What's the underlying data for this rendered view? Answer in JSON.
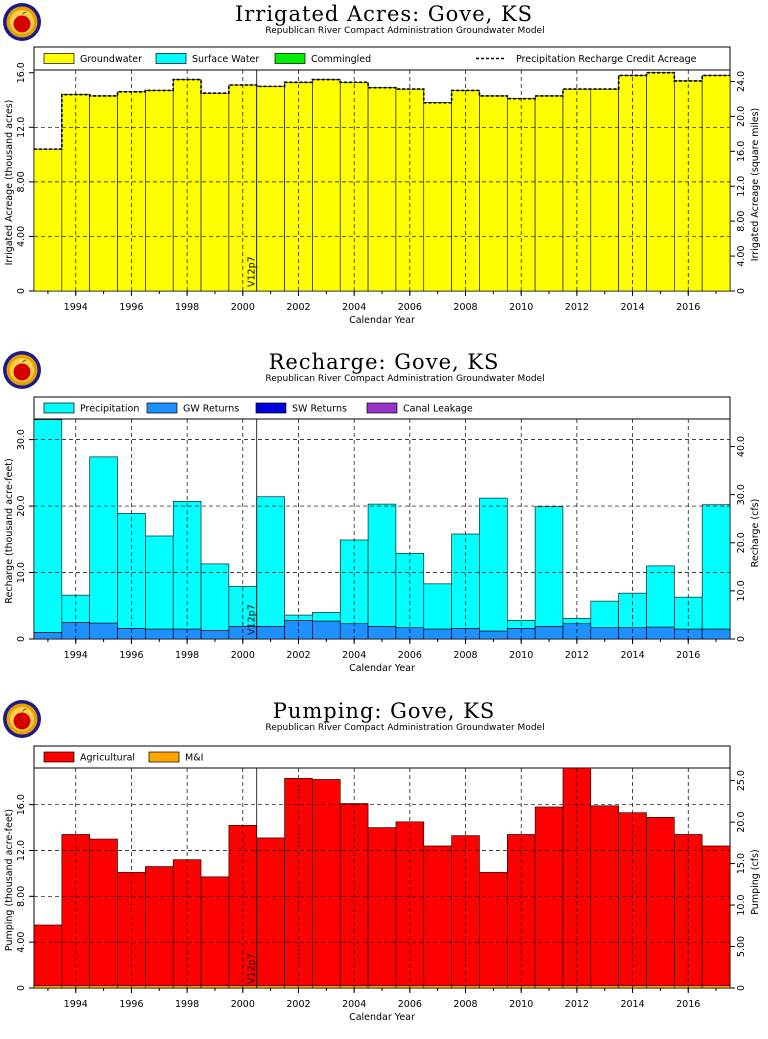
{
  "chart_data": [
    {
      "type": "bar",
      "title": "Irrigated  Acres:  Gove,  KS",
      "subtitle": "Republican  River  Compact  Administration  Groundwater  Model",
      "xlabel": "Calendar  Year",
      "ylabel": "Irrigated Acreage  (thousand  acres)",
      "ylabel_right": "Irrigated Acreage  (square  miles)",
      "annotation": "V12p7",
      "annotation_year": 2000.5,
      "xlim": [
        1992.5,
        2017.5
      ],
      "ylim": [
        0,
        16.2
      ],
      "yticks": [
        0,
        4.0,
        8.0,
        12.0,
        16.0
      ],
      "ytick_labels": [
        "0",
        "4.00",
        "8.00",
        "12.0",
        "16.0"
      ],
      "right_scale": 1.5625,
      "right_ticks": [
        0,
        4.0,
        8.0,
        12.0,
        16.0,
        20.0,
        24.0
      ],
      "right_tick_labels": [
        "0",
        "4.00",
        "8.00",
        "12.0",
        "16.0",
        "20.0",
        "24.0"
      ],
      "xticks": [
        1994,
        1996,
        1998,
        2000,
        2002,
        2004,
        2006,
        2008,
        2010,
        2012,
        2014,
        2016
      ],
      "categories": [
        1993,
        1994,
        1995,
        1996,
        1997,
        1998,
        1999,
        2000,
        2001,
        2002,
        2003,
        2004,
        2005,
        2006,
        2007,
        2008,
        2009,
        2010,
        2011,
        2012,
        2013,
        2014,
        2015,
        2016,
        2017
      ],
      "series": [
        {
          "name": "Groundwater",
          "color": "#ffff00",
          "values": [
            10.4,
            14.4,
            14.3,
            14.6,
            14.7,
            15.5,
            14.5,
            15.1,
            15.0,
            15.3,
            15.5,
            15.3,
            14.9,
            14.8,
            13.8,
            14.7,
            14.3,
            14.1,
            14.3,
            14.8,
            14.8,
            15.8,
            16.0,
            15.4,
            15.8
          ]
        },
        {
          "name": "Surface  Water",
          "color": "#00ffff",
          "values": [
            0,
            0,
            0,
            0,
            0,
            0,
            0,
            0,
            0,
            0,
            0,
            0,
            0,
            0,
            0,
            0,
            0,
            0,
            0,
            0,
            0,
            0,
            0,
            0,
            0
          ]
        },
        {
          "name": "Commingled",
          "color": "#00ee00",
          "values": [
            0,
            0,
            0,
            0,
            0,
            0,
            0,
            0,
            0,
            0,
            0,
            0,
            0,
            0,
            0,
            0,
            0,
            0,
            0,
            0,
            0,
            0,
            0,
            0,
            0
          ]
        }
      ],
      "line_series": {
        "name": "Precipitation  Recharge  Credit  Acreage",
        "style": "dashed",
        "values": [
          10.4,
          14.4,
          14.3,
          14.6,
          14.7,
          15.5,
          14.5,
          15.1,
          15.0,
          15.3,
          15.5,
          15.3,
          14.9,
          14.8,
          13.8,
          14.7,
          14.3,
          14.1,
          14.3,
          14.8,
          14.8,
          15.8,
          16.0,
          15.4,
          15.8
        ]
      },
      "hgrid": [
        4.0,
        8.0,
        12.0
      ],
      "grid": true,
      "legend": "top"
    },
    {
      "type": "bar",
      "title": "Recharge:  Gove,  KS",
      "subtitle": "Republican  River  Compact  Administration  Groundwater  Model",
      "xlabel": "Calendar  Year",
      "ylabel": "Recharge  (thousand  acre-feet)",
      "ylabel_right": "Recharge  (cfs)",
      "annotation": "V12p7",
      "annotation_year": 2000.5,
      "xlim": [
        1992.5,
        2017.5
      ],
      "ylim": [
        0,
        33.1
      ],
      "yticks": [
        0,
        10.0,
        20.0,
        30.0
      ],
      "ytick_labels": [
        "0",
        "10.0",
        "20.0",
        "30.0"
      ],
      "right_scale": 1.3812,
      "right_ticks": [
        0,
        10.0,
        20.0,
        30.0,
        40.0
      ],
      "right_tick_labels": [
        "0",
        "10.0",
        "20.0",
        "30.0",
        "40.0"
      ],
      "xticks": [
        1994,
        1996,
        1998,
        2000,
        2002,
        2004,
        2006,
        2008,
        2010,
        2012,
        2014,
        2016
      ],
      "categories": [
        1993,
        1994,
        1995,
        1996,
        1997,
        1998,
        1999,
        2000,
        2001,
        2002,
        2003,
        2004,
        2005,
        2006,
        2007,
        2008,
        2009,
        2010,
        2011,
        2012,
        2013,
        2014,
        2015,
        2016,
        2017
      ],
      "series": [
        {
          "name": "GW  Returns",
          "color": "#1e90ff",
          "values": [
            1.0,
            2.5,
            2.4,
            1.6,
            1.5,
            1.5,
            1.3,
            1.9,
            1.9,
            2.8,
            2.7,
            2.3,
            1.9,
            1.7,
            1.5,
            1.6,
            1.2,
            1.6,
            1.9,
            2.3,
            1.7,
            1.7,
            1.8,
            1.5,
            1.5
          ]
        },
        {
          "name": "Precipitation",
          "color": "#00ffff",
          "values": [
            32.0,
            4.1,
            25.0,
            17.3,
            14.0,
            19.2,
            10.0,
            6.0,
            19.5,
            0.8,
            1.3,
            12.6,
            18.4,
            11.2,
            6.8,
            14.2,
            20.0,
            1.2,
            18.0,
            0.8,
            4.0,
            5.2,
            9.2,
            4.8,
            18.7
          ]
        },
        {
          "name": "SW  Returns",
          "color": "#0000dd",
          "values": [
            0,
            0,
            0,
            0,
            0,
            0,
            0,
            0,
            0,
            0,
            0,
            0,
            0,
            0,
            0,
            0,
            0,
            0,
            0,
            0,
            0,
            0,
            0,
            0,
            0
          ]
        },
        {
          "name": "Canal  Leakage",
          "color": "#9932cc",
          "values": [
            0,
            0,
            0,
            0,
            0,
            0,
            0,
            0,
            0,
            0,
            0,
            0,
            0,
            0,
            0,
            0,
            0,
            0,
            0,
            0,
            0,
            0,
            0,
            0,
            0
          ]
        }
      ],
      "legend_order": [
        "Precipitation",
        "GW  Returns",
        "SW  Returns",
        "Canal  Leakage"
      ],
      "hgrid": [
        10.0,
        20.0,
        30.0
      ],
      "grid": true,
      "legend": "top"
    },
    {
      "type": "bar",
      "title": "Pumping:  Gove,  KS",
      "subtitle": "Republican  River  Compact  Administration  Groundwater  Model",
      "xlabel": "Calendar  Year",
      "ylabel": "Pumping  (thousand  acre-feet)",
      "ylabel_right": "Pumping  (cfs)",
      "annotation": "V12p7",
      "annotation_year": 2000.5,
      "xlim": [
        1992.5,
        2017.5
      ],
      "ylim": [
        0,
        19.2
      ],
      "yticks": [
        0,
        4.0,
        8.0,
        12.0,
        16.0
      ],
      "ytick_labels": [
        "0",
        "4.00",
        "8.00",
        "12.0",
        "16.0"
      ],
      "right_scale": 1.3812,
      "right_ticks": [
        0,
        5.0,
        10.0,
        15.0,
        20.0,
        25.0
      ],
      "right_tick_labels": [
        "0",
        "5.00",
        "10.0",
        "15.0",
        "20.0",
        "25.0"
      ],
      "xticks": [
        1994,
        1996,
        1998,
        2000,
        2002,
        2004,
        2006,
        2008,
        2010,
        2012,
        2014,
        2016
      ],
      "categories": [
        1993,
        1994,
        1995,
        1996,
        1997,
        1998,
        1999,
        2000,
        2001,
        2002,
        2003,
        2004,
        2005,
        2006,
        2007,
        2008,
        2009,
        2010,
        2011,
        2012,
        2013,
        2014,
        2015,
        2016,
        2017
      ],
      "series": [
        {
          "name": "M&I",
          "color": "#ffa500",
          "values": [
            0.2,
            0.2,
            0.2,
            0.2,
            0.2,
            0.2,
            0.2,
            0.2,
            0.2,
            0.2,
            0.2,
            0.2,
            0.2,
            0.2,
            0.2,
            0.2,
            0.2,
            0.2,
            0.2,
            0.2,
            0.2,
            0.2,
            0.2,
            0.2,
            0.2
          ]
        },
        {
          "name": "Agricultural",
          "color": "#ff0000",
          "values": [
            5.3,
            13.2,
            12.8,
            9.9,
            10.4,
            11.0,
            9.5,
            14.0,
            12.9,
            18.1,
            18.0,
            15.9,
            13.8,
            14.3,
            12.2,
            13.1,
            9.9,
            13.2,
            15.6,
            19.0,
            15.7,
            15.1,
            14.7,
            13.2,
            12.2
          ]
        }
      ],
      "legend_order": [
        "Agricultural",
        "M&I"
      ],
      "hgrid": [
        4.0,
        8.0,
        12.0,
        16.0
      ],
      "grid": true,
      "legend": "top"
    }
  ]
}
